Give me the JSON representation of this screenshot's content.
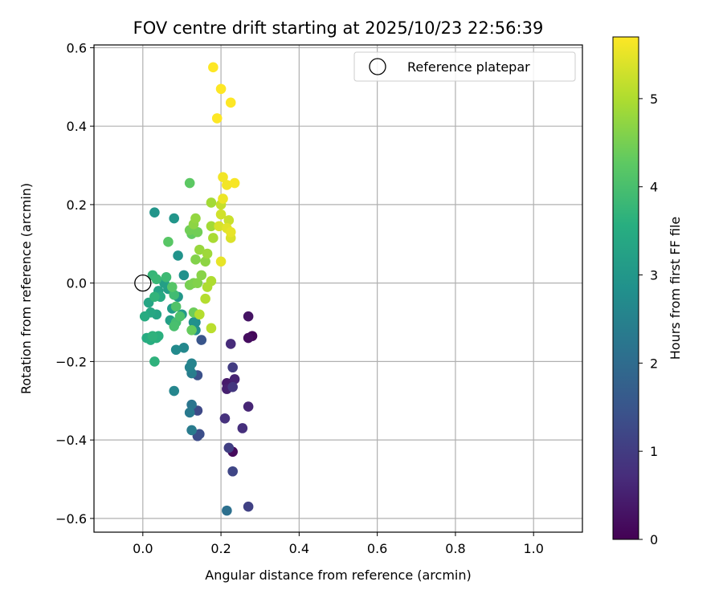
{
  "chart_data": {
    "type": "scatter",
    "title": "FOV centre drift starting at 2025/10/23 22:56:39",
    "xlabel": "Angular distance from reference (arcmin)",
    "ylabel": "Rotation from reference (arcmin)",
    "xlim": [
      -0.125,
      1.125
    ],
    "ylim": [
      -0.635,
      0.607
    ],
    "x_ticks": [
      0.0,
      0.2,
      0.4,
      0.6,
      0.8,
      1.0
    ],
    "x_tick_labels": [
      "0.0",
      "0.2",
      "0.4",
      "0.6",
      "0.8",
      "1.0"
    ],
    "y_ticks": [
      -0.6,
      -0.4,
      -0.2,
      0.0,
      0.2,
      0.4,
      0.6
    ],
    "y_tick_labels": [
      "−0.6",
      "−0.4",
      "−0.2",
      "0.0",
      "0.2",
      "0.4",
      "0.6"
    ],
    "grid": true,
    "legend": {
      "position": "top-right",
      "label": "Reference platepar"
    },
    "reference_point": {
      "x": 0.0,
      "y": 0.0
    },
    "colorbar": {
      "label": "Hours from first FF file",
      "range": [
        0,
        5.7
      ],
      "ticks": [
        0,
        1,
        2,
        3,
        4,
        5
      ],
      "tick_labels": [
        "0",
        "1",
        "2",
        "3",
        "4",
        "5"
      ],
      "colormap": "viridis"
    },
    "points": [
      {
        "x": 0.28,
        "y": -0.135,
        "t": 0.1
      },
      {
        "x": 0.23,
        "y": -0.43,
        "t": 0.15
      },
      {
        "x": 0.27,
        "y": -0.14,
        "t": 0.2
      },
      {
        "x": 0.27,
        "y": -0.085,
        "t": 0.3
      },
      {
        "x": 0.215,
        "y": -0.255,
        "t": 0.4
      },
      {
        "x": 0.215,
        "y": -0.27,
        "t": 0.5
      },
      {
        "x": 0.235,
        "y": -0.245,
        "t": 0.55
      },
      {
        "x": 0.27,
        "y": -0.315,
        "t": 0.6
      },
      {
        "x": 0.225,
        "y": -0.155,
        "t": 0.7
      },
      {
        "x": 0.255,
        "y": -0.37,
        "t": 0.75
      },
      {
        "x": 0.21,
        "y": -0.345,
        "t": 0.8
      },
      {
        "x": 0.23,
        "y": -0.265,
        "t": 0.9
      },
      {
        "x": 0.23,
        "y": -0.215,
        "t": 1.0
      },
      {
        "x": 0.22,
        "y": -0.42,
        "t": 1.05
      },
      {
        "x": 0.27,
        "y": -0.57,
        "t": 1.1
      },
      {
        "x": 0.23,
        "y": -0.48,
        "t": 1.2
      },
      {
        "x": 0.14,
        "y": -0.325,
        "t": 1.25
      },
      {
        "x": 0.14,
        "y": -0.39,
        "t": 1.3
      },
      {
        "x": 0.145,
        "y": -0.385,
        "t": 1.35
      },
      {
        "x": 0.14,
        "y": -0.235,
        "t": 1.4
      },
      {
        "x": 0.15,
        "y": -0.145,
        "t": 1.5
      },
      {
        "x": 0.215,
        "y": -0.58,
        "t": 2.1
      },
      {
        "x": 0.125,
        "y": -0.31,
        "t": 2.2
      },
      {
        "x": 0.12,
        "y": -0.33,
        "t": 2.3
      },
      {
        "x": 0.125,
        "y": -0.375,
        "t": 2.35
      },
      {
        "x": 0.125,
        "y": -0.23,
        "t": 2.4
      },
      {
        "x": 0.12,
        "y": -0.215,
        "t": 2.5
      },
      {
        "x": 0.125,
        "y": -0.205,
        "t": 2.55
      },
      {
        "x": 0.08,
        "y": -0.275,
        "t": 2.6
      },
      {
        "x": 0.105,
        "y": -0.165,
        "t": 2.65
      },
      {
        "x": 0.085,
        "y": -0.17,
        "t": 2.7
      },
      {
        "x": 0.135,
        "y": -0.1,
        "t": 2.75
      },
      {
        "x": 0.135,
        "y": -0.12,
        "t": 2.8
      },
      {
        "x": 0.105,
        "y": 0.02,
        "t": 2.85
      },
      {
        "x": 0.13,
        "y": -0.1,
        "t": 2.85
      },
      {
        "x": 0.09,
        "y": 0.07,
        "t": 2.9
      },
      {
        "x": 0.08,
        "y": 0.165,
        "t": 2.95
      },
      {
        "x": 0.03,
        "y": 0.18,
        "t": 2.95
      },
      {
        "x": 0.09,
        "y": -0.035,
        "t": 3.0
      },
      {
        "x": 0.1,
        "y": -0.08,
        "t": 3.05
      },
      {
        "x": 0.075,
        "y": -0.065,
        "t": 3.1
      },
      {
        "x": 0.065,
        "y": -0.015,
        "t": 3.15
      },
      {
        "x": 0.055,
        "y": 0.0,
        "t": 3.2
      },
      {
        "x": 0.07,
        "y": -0.095,
        "t": 3.2
      },
      {
        "x": 0.04,
        "y": -0.02,
        "t": 3.25
      },
      {
        "x": 0.035,
        "y": -0.08,
        "t": 3.3
      },
      {
        "x": 0.015,
        "y": -0.05,
        "t": 3.35
      },
      {
        "x": 0.02,
        "y": -0.075,
        "t": 3.4
      },
      {
        "x": 0.045,
        "y": -0.035,
        "t": 3.45
      },
      {
        "x": 0.005,
        "y": -0.085,
        "t": 3.5
      },
      {
        "x": 0.01,
        "y": -0.14,
        "t": 3.5
      },
      {
        "x": 0.02,
        "y": -0.145,
        "t": 3.55
      },
      {
        "x": 0.035,
        "y": -0.14,
        "t": 3.6
      },
      {
        "x": 0.04,
        "y": -0.135,
        "t": 3.6
      },
      {
        "x": 0.025,
        "y": -0.135,
        "t": 3.65
      },
      {
        "x": 0.03,
        "y": -0.2,
        "t": 3.65
      },
      {
        "x": 0.03,
        "y": -0.035,
        "t": 3.7
      },
      {
        "x": 0.025,
        "y": 0.02,
        "t": 3.75
      },
      {
        "x": 0.035,
        "y": 0.01,
        "t": 3.8
      },
      {
        "x": 0.06,
        "y": 0.015,
        "t": 3.85
      },
      {
        "x": 0.08,
        "y": -0.03,
        "t": 3.9
      },
      {
        "x": 0.085,
        "y": -0.1,
        "t": 3.95
      },
      {
        "x": 0.08,
        "y": -0.11,
        "t": 4.0
      },
      {
        "x": 0.095,
        "y": -0.085,
        "t": 4.05
      },
      {
        "x": 0.085,
        "y": -0.06,
        "t": 4.1
      },
      {
        "x": 0.075,
        "y": -0.01,
        "t": 4.15
      },
      {
        "x": 0.065,
        "y": 0.105,
        "t": 4.2
      },
      {
        "x": 0.12,
        "y": 0.255,
        "t": 4.25
      },
      {
        "x": 0.125,
        "y": 0.125,
        "t": 4.3
      },
      {
        "x": 0.125,
        "y": -0.12,
        "t": 4.35
      },
      {
        "x": 0.13,
        "y": -0.075,
        "t": 4.4
      },
      {
        "x": 0.12,
        "y": 0.135,
        "t": 4.45
      },
      {
        "x": 0.14,
        "y": 0.13,
        "t": 4.45
      },
      {
        "x": 0.12,
        "y": -0.005,
        "t": 4.5
      },
      {
        "x": 0.13,
        "y": 0.0,
        "t": 4.55
      },
      {
        "x": 0.14,
        "y": 0.0,
        "t": 4.6
      },
      {
        "x": 0.135,
        "y": 0.06,
        "t": 4.6
      },
      {
        "x": 0.15,
        "y": 0.02,
        "t": 4.65
      },
      {
        "x": 0.16,
        "y": 0.055,
        "t": 4.7
      },
      {
        "x": 0.13,
        "y": 0.15,
        "t": 4.7
      },
      {
        "x": 0.135,
        "y": 0.165,
        "t": 4.75
      },
      {
        "x": 0.145,
        "y": 0.085,
        "t": 4.8
      },
      {
        "x": 0.165,
        "y": 0.075,
        "t": 4.85
      },
      {
        "x": 0.175,
        "y": 0.205,
        "t": 4.9
      },
      {
        "x": 0.175,
        "y": 0.145,
        "t": 4.9
      },
      {
        "x": 0.18,
        "y": 0.115,
        "t": 4.95
      },
      {
        "x": 0.175,
        "y": 0.005,
        "t": 5.0
      },
      {
        "x": 0.165,
        "y": -0.01,
        "t": 5.0
      },
      {
        "x": 0.16,
        "y": -0.04,
        "t": 5.05
      },
      {
        "x": 0.145,
        "y": -0.08,
        "t": 5.05
      },
      {
        "x": 0.175,
        "y": -0.115,
        "t": 5.1
      },
      {
        "x": 0.2,
        "y": 0.2,
        "t": 5.2
      },
      {
        "x": 0.22,
        "y": 0.16,
        "t": 5.25
      },
      {
        "x": 0.2,
        "y": 0.175,
        "t": 5.3
      },
      {
        "x": 0.195,
        "y": 0.145,
        "t": 5.35
      },
      {
        "x": 0.225,
        "y": 0.115,
        "t": 5.4
      },
      {
        "x": 0.215,
        "y": 0.14,
        "t": 5.45
      },
      {
        "x": 0.225,
        "y": 0.13,
        "t": 5.5
      },
      {
        "x": 0.2,
        "y": 0.055,
        "t": 5.5
      },
      {
        "x": 0.205,
        "y": 0.215,
        "t": 5.55
      },
      {
        "x": 0.205,
        "y": 0.27,
        "t": 5.6
      },
      {
        "x": 0.215,
        "y": 0.25,
        "t": 5.6
      },
      {
        "x": 0.235,
        "y": 0.255,
        "t": 5.65
      },
      {
        "x": 0.18,
        "y": 0.55,
        "t": 5.7
      },
      {
        "x": 0.2,
        "y": 0.495,
        "t": 5.7
      },
      {
        "x": 0.225,
        "y": 0.46,
        "t": 5.7
      },
      {
        "x": 0.19,
        "y": 0.42,
        "t": 5.7
      }
    ]
  }
}
